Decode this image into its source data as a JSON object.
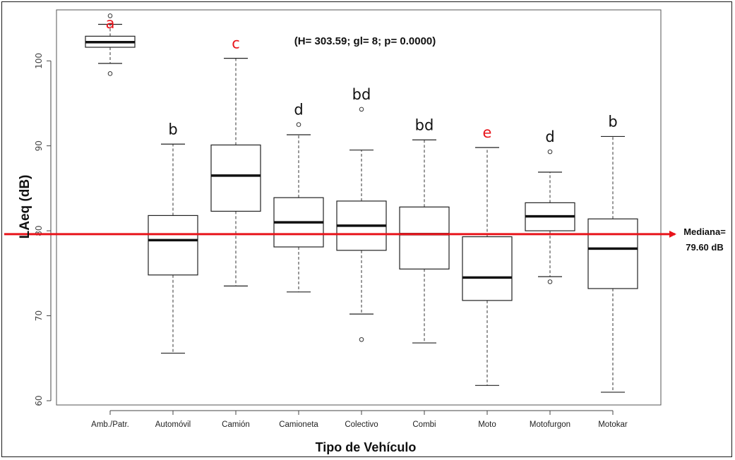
{
  "chart_data": {
    "type": "boxplot",
    "title": "",
    "xlabel": "Tipo de Vehículo",
    "ylabel": "LAeq (dB)",
    "ylim": [
      59.5,
      106
    ],
    "yticks": [
      60,
      70,
      80,
      90,
      100
    ],
    "grid": false,
    "annotation": "(H= 303.59; gl= 8; p= 0.0000)",
    "categories": [
      "Amb./Patr.",
      "Automóvil",
      "Camión",
      "Camioneta",
      "Colectivo",
      "Combi",
      "Moto",
      "Motofurgon",
      "Motokar"
    ],
    "boxes": [
      {
        "label": "Amb./Patr.",
        "whisker_low": 99.7,
        "q1": 101.6,
        "median": 102.2,
        "q3": 102.9,
        "whisker_high": 104.3,
        "outliers": [
          98.5,
          105.3
        ],
        "group": "a",
        "group_color": "#e8141b"
      },
      {
        "label": "Automóvil",
        "whisker_low": 65.6,
        "q1": 74.8,
        "median": 78.9,
        "q3": 81.8,
        "whisker_high": 90.2,
        "outliers": [],
        "group": "b",
        "group_color": "#111111"
      },
      {
        "label": "Camión",
        "whisker_low": 73.5,
        "q1": 82.3,
        "median": 86.5,
        "q3": 90.1,
        "whisker_high": 100.3,
        "outliers": [],
        "group": "c",
        "group_color": "#e8141b"
      },
      {
        "label": "Camioneta",
        "whisker_low": 72.8,
        "q1": 78.1,
        "median": 81.0,
        "q3": 83.9,
        "whisker_high": 91.3,
        "outliers": [
          92.5
        ],
        "group": "d",
        "group_color": "#111111"
      },
      {
        "label": "Colectivo",
        "whisker_low": 70.2,
        "q1": 77.7,
        "median": 80.6,
        "q3": 83.5,
        "whisker_high": 89.5,
        "outliers": [
          67.2,
          94.3
        ],
        "group": "bd",
        "group_color": "#111111"
      },
      {
        "label": "Combi",
        "whisker_low": 66.8,
        "q1": 75.5,
        "median": 79.6,
        "q3": 82.8,
        "whisker_high": 90.7,
        "outliers": [],
        "group": "bd",
        "group_color": "#111111"
      },
      {
        "label": "Moto",
        "whisker_low": 61.8,
        "q1": 71.8,
        "median": 74.5,
        "q3": 79.3,
        "whisker_high": 89.8,
        "outliers": [],
        "group": "e",
        "group_color": "#e8141b"
      },
      {
        "label": "Motofurgon",
        "whisker_low": 74.6,
        "q1": 80.0,
        "median": 81.7,
        "q3": 83.3,
        "whisker_high": 86.9,
        "outliers": [
          74.0,
          89.3
        ],
        "group": "d",
        "group_color": "#111111"
      },
      {
        "label": "Motokar",
        "whisker_low": 61.0,
        "q1": 73.2,
        "median": 77.9,
        "q3": 81.4,
        "whisker_high": 91.1,
        "outliers": [],
        "group": "b",
        "group_color": "#111111"
      }
    ],
    "reference_line": {
      "value": 79.6,
      "color": "#e8141b",
      "label_line1": "Mediana=",
      "label_line2": "79.60 dB"
    }
  }
}
